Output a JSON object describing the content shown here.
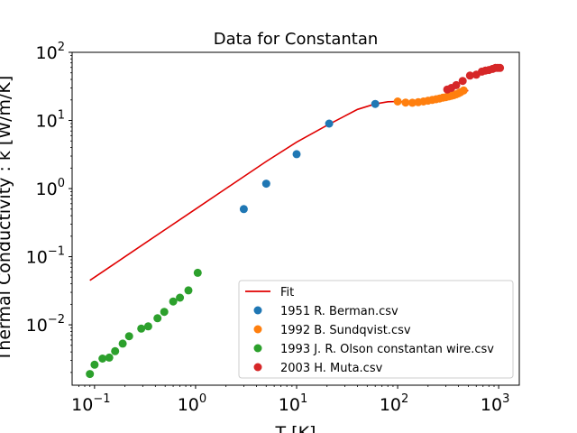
{
  "chart_data": {
    "type": "scatter",
    "title": "Data for Constantan",
    "xlabel": "T [K]",
    "ylabel": "Thermal Conductivity : k [W/m/K]",
    "xscale": "log",
    "yscale": "log",
    "xlim": [
      0.06,
      1600
    ],
    "ylim": [
      0.0013,
      100
    ],
    "grid": false,
    "legend_position": "bottom-right",
    "x_ticks": [
      {
        "base": "10",
        "exp": "−1",
        "value": 0.1
      },
      {
        "base": "10",
        "exp": "0",
        "value": 1
      },
      {
        "base": "10",
        "exp": "1",
        "value": 10
      },
      {
        "base": "10",
        "exp": "2",
        "value": 100
      },
      {
        "base": "10",
        "exp": "3",
        "value": 1000
      }
    ],
    "y_ticks": [
      {
        "base": "10",
        "exp": "−2",
        "value": 0.01
      },
      {
        "base": "10",
        "exp": "−1",
        "value": 0.1
      },
      {
        "base": "10",
        "exp": "0",
        "value": 1
      },
      {
        "base": "10",
        "exp": "1",
        "value": 10
      },
      {
        "base": "10",
        "exp": "2",
        "value": 100
      }
    ],
    "series": [
      {
        "name": "Fit",
        "kind": "line",
        "color": "#e00000",
        "points": [
          [
            0.09,
            0.045
          ],
          [
            0.2,
            0.1
          ],
          [
            0.5,
            0.25
          ],
          [
            1,
            0.5
          ],
          [
            2,
            1.0
          ],
          [
            5,
            2.5
          ],
          [
            10,
            4.8
          ],
          [
            20,
            8.5
          ],
          [
            40,
            14.5
          ],
          [
            60,
            17.5
          ],
          [
            80,
            18.8
          ],
          [
            100,
            19.0
          ],
          [
            130,
            18.5
          ],
          [
            200,
            19.5
          ],
          [
            300,
            22.5
          ],
          [
            400,
            25.5
          ],
          [
            500,
            27.5
          ]
        ]
      },
      {
        "name": "1951 R. Berman.csv",
        "kind": "scatter",
        "color": "#1f77b4",
        "points": [
          [
            3,
            0.5
          ],
          [
            5,
            1.18
          ],
          [
            10,
            3.2
          ],
          [
            21,
            9.0
          ],
          [
            60,
            17.5
          ]
        ]
      },
      {
        "name": "1992 B. Sundqvist.csv",
        "kind": "scatter",
        "color": "#ff7f0e",
        "points": [
          [
            100,
            19.0
          ],
          [
            120,
            18.3
          ],
          [
            140,
            18.2
          ],
          [
            160,
            18.5
          ],
          [
            180,
            19.0
          ],
          [
            200,
            19.5
          ],
          [
            220,
            20.0
          ],
          [
            240,
            20.5
          ],
          [
            260,
            21.0
          ],
          [
            280,
            21.6
          ],
          [
            300,
            22.0
          ],
          [
            320,
            22.5
          ],
          [
            340,
            23.0
          ],
          [
            360,
            23.5
          ],
          [
            380,
            24.2
          ],
          [
            400,
            25.0
          ],
          [
            420,
            26.0
          ],
          [
            450,
            27.5
          ]
        ]
      },
      {
        "name": "1993 J. R. Olson constantan wire.csv",
        "kind": "scatter",
        "color": "#2ca02c",
        "points": [
          [
            0.09,
            0.0019
          ],
          [
            0.1,
            0.0026
          ],
          [
            0.12,
            0.0032
          ],
          [
            0.14,
            0.0033
          ],
          [
            0.16,
            0.0041
          ],
          [
            0.19,
            0.0053
          ],
          [
            0.22,
            0.0068
          ],
          [
            0.29,
            0.0088
          ],
          [
            0.34,
            0.0095
          ],
          [
            0.42,
            0.0125
          ],
          [
            0.49,
            0.0155
          ],
          [
            0.6,
            0.022
          ],
          [
            0.7,
            0.025
          ],
          [
            0.85,
            0.032
          ],
          [
            1.05,
            0.058
          ]
        ]
      },
      {
        "name": "2003 H. Muta.csv",
        "kind": "scatter",
        "color": "#d62728",
        "points": [
          [
            310,
            28.5
          ],
          [
            340,
            30.0
          ],
          [
            380,
            33.0
          ],
          [
            440,
            38.0
          ],
          [
            520,
            45.5
          ],
          [
            600,
            47.0
          ],
          [
            680,
            52.0
          ],
          [
            740,
            54.0
          ],
          [
            800,
            55.0
          ],
          [
            870,
            57.0
          ],
          [
            930,
            59.0
          ],
          [
            980,
            59.0
          ],
          [
            1030,
            59.0
          ]
        ]
      }
    ]
  }
}
